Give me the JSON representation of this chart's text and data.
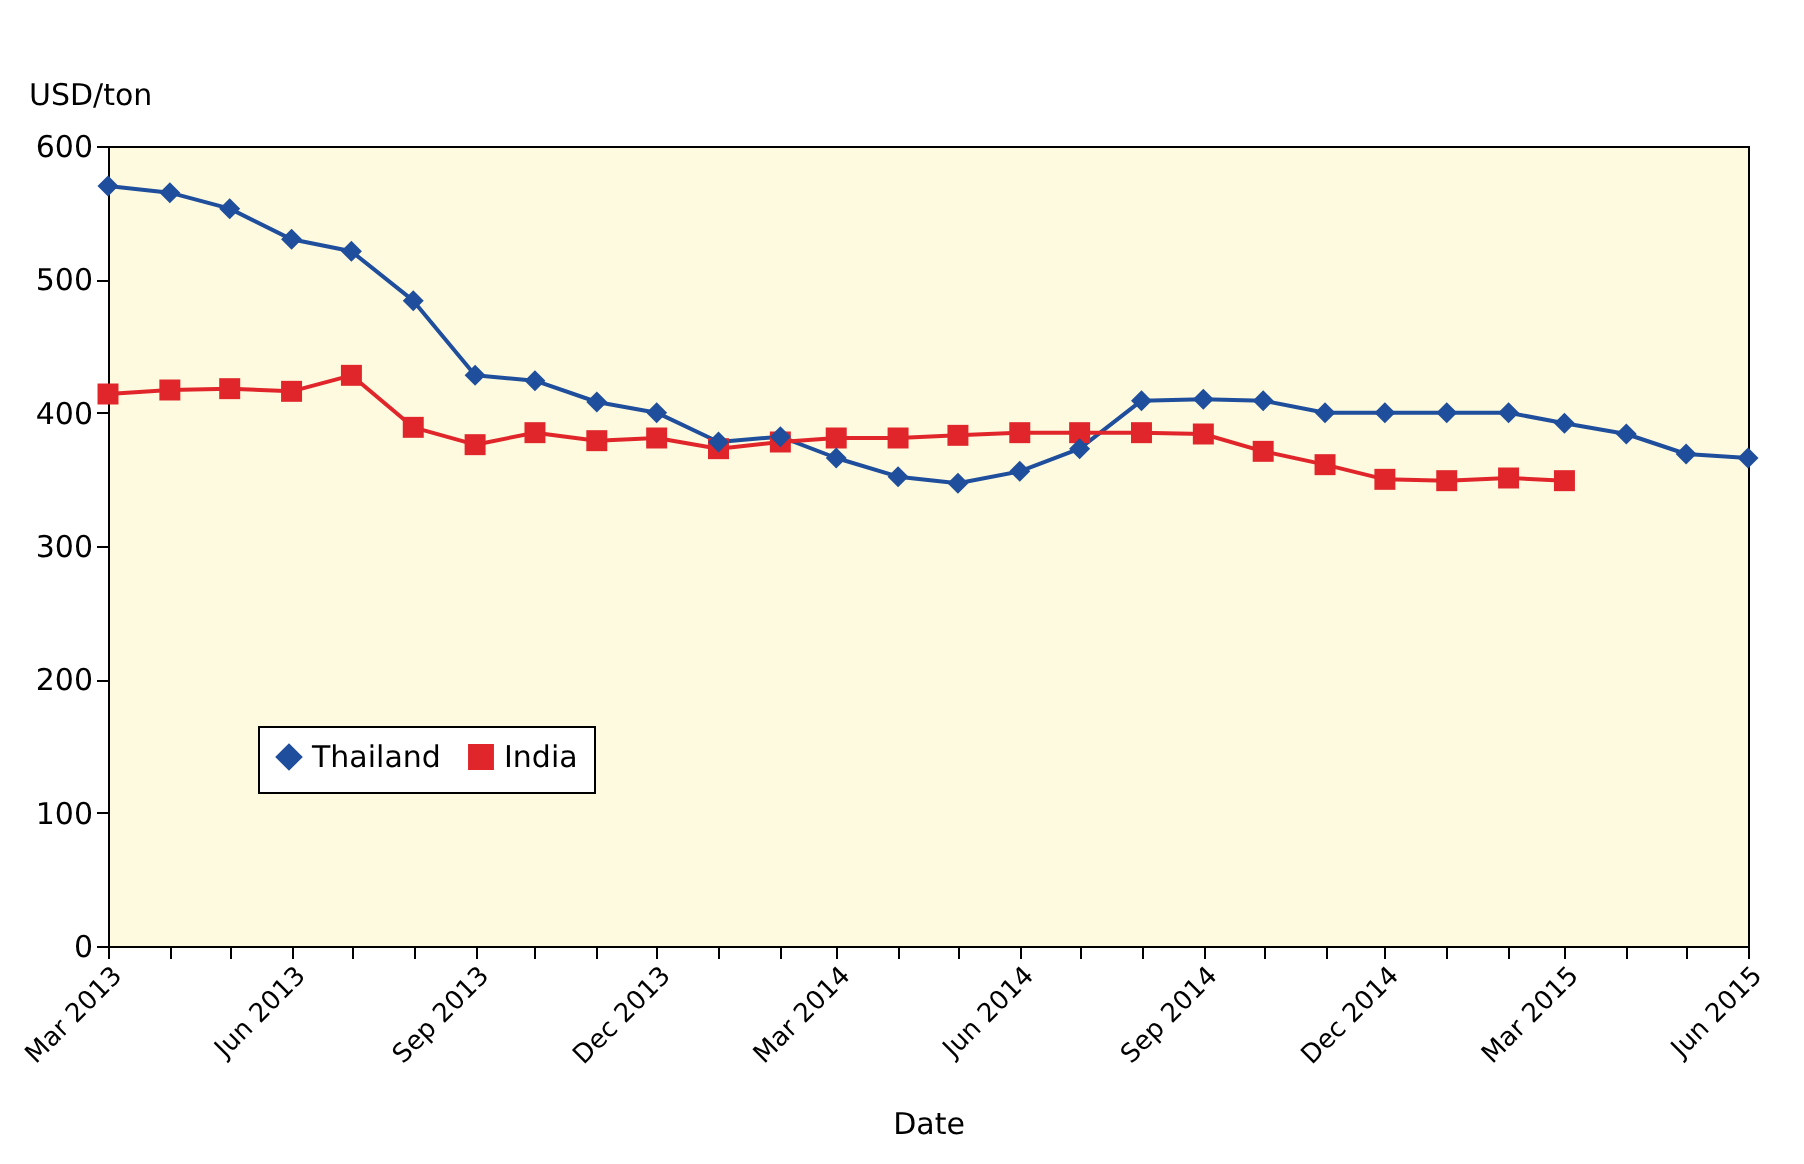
{
  "chart_data": {
    "type": "line",
    "xlabel": "Date",
    "ylabel": "USD/ton",
    "x": [
      "2013-03",
      "2013-04",
      "2013-05",
      "2013-06",
      "2013-07",
      "2013-08",
      "2013-09",
      "2013-10",
      "2013-11",
      "2013-12",
      "2014-01",
      "2014-02",
      "2014-03",
      "2014-04",
      "2014-05",
      "2014-06",
      "2014-07",
      "2014-08",
      "2014-09",
      "2014-10",
      "2014-11",
      "2014-12",
      "2015-01",
      "2015-02",
      "2015-03",
      "2015-04",
      "2015-05",
      "2015-06"
    ],
    "series": [
      {
        "name": "Thailand",
        "color": "#1f4e9c",
        "marker": "diamond",
        "values": [
          570,
          565,
          553,
          530,
          521,
          484,
          428,
          424,
          408,
          400,
          378,
          382,
          366,
          352,
          347,
          356,
          373,
          409,
          410,
          409,
          400,
          400,
          400,
          400,
          392,
          384,
          369,
          366
        ]
      },
      {
        "name": "India",
        "color": "#e0262b",
        "marker": "square",
        "values": [
          414,
          417,
          418,
          416,
          428,
          389,
          376,
          385,
          379,
          381,
          373,
          378,
          381,
          381,
          383,
          385,
          385,
          385,
          384,
          371,
          361,
          350,
          349,
          351,
          349,
          null,
          null,
          null
        ]
      }
    ],
    "xlim": [
      "2013-03",
      "2015-06"
    ],
    "xticks": [
      {
        "value": "2013-03",
        "label": "Mar 2013"
      },
      {
        "value": "2013-04",
        "label": null
      },
      {
        "value": "2013-05",
        "label": null
      },
      {
        "value": "2013-06",
        "label": "Jun 2013"
      },
      {
        "value": "2013-07",
        "label": null
      },
      {
        "value": "2013-08",
        "label": null
      },
      {
        "value": "2013-09",
        "label": "Sep 2013"
      },
      {
        "value": "2013-10",
        "label": null
      },
      {
        "value": "2013-11",
        "label": null
      },
      {
        "value": "2013-12",
        "label": "Dec 2013"
      },
      {
        "value": "2014-01",
        "label": null
      },
      {
        "value": "2014-02",
        "label": null
      },
      {
        "value": "2014-03",
        "label": "Mar 2014"
      },
      {
        "value": "2014-04",
        "label": null
      },
      {
        "value": "2014-05",
        "label": null
      },
      {
        "value": "2014-06",
        "label": "Jun 2014"
      },
      {
        "value": "2014-07",
        "label": null
      },
      {
        "value": "2014-08",
        "label": null
      },
      {
        "value": "2014-09",
        "label": "Sep 2014"
      },
      {
        "value": "2014-10",
        "label": null
      },
      {
        "value": "2014-11",
        "label": null
      },
      {
        "value": "2014-12",
        "label": "Dec 2014"
      },
      {
        "value": "2015-01",
        "label": null
      },
      {
        "value": "2015-02",
        "label": null
      },
      {
        "value": "2015-03",
        "label": "Mar 2015"
      },
      {
        "value": "2015-04",
        "label": null
      },
      {
        "value": "2015-05",
        "label": null
      },
      {
        "value": "2015-06",
        "label": "Jun 2015"
      }
    ],
    "ylim": [
      0,
      600
    ],
    "yticks": [
      0,
      100,
      200,
      300,
      400,
      500,
      600
    ],
    "grid": false,
    "legend": "left",
    "line_style": "solid"
  }
}
